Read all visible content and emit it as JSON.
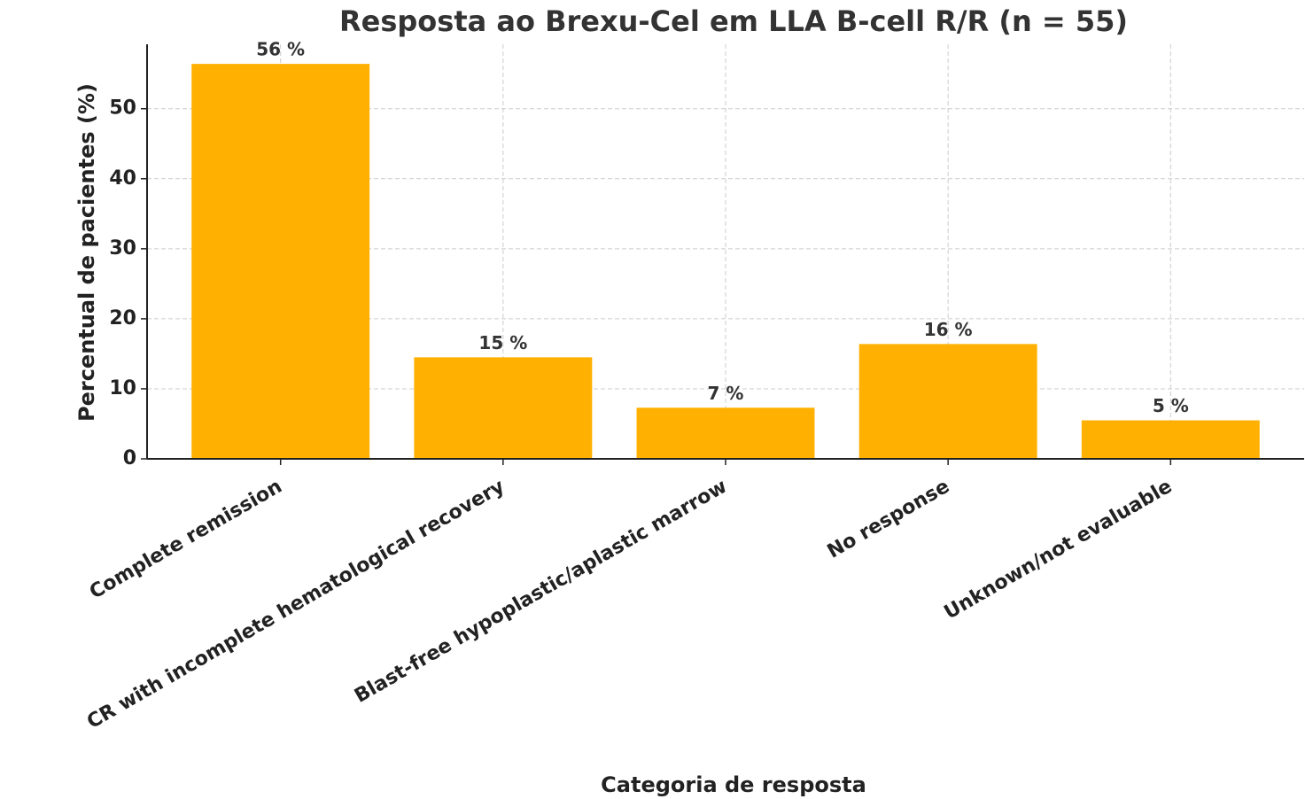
{
  "chart_data": {
    "type": "bar",
    "title": "Resposta ao Brexu-Cel em LLA B-cell R/R (n = 55)",
    "x_label": "Categoria de resposta",
    "y_label": "Percentual de pacientes (%)",
    "categories": [
      "Complete remission",
      "CR with incomplete hematological recovery",
      "Blast-free hypoplastic/aplastic marrow",
      "No response",
      "Unknown/not evaluable"
    ],
    "values": [
      56.4,
      14.5,
      7.3,
      16.4,
      5.5
    ],
    "value_labels": [
      "56 %",
      "15 %",
      "7 %",
      "16 %",
      "5 %"
    ],
    "color": "#ffb000",
    "ylim": [
      0,
      59.2
    ],
    "yticks": [
      0,
      10,
      20,
      30,
      40,
      50
    ],
    "grid": true
  }
}
